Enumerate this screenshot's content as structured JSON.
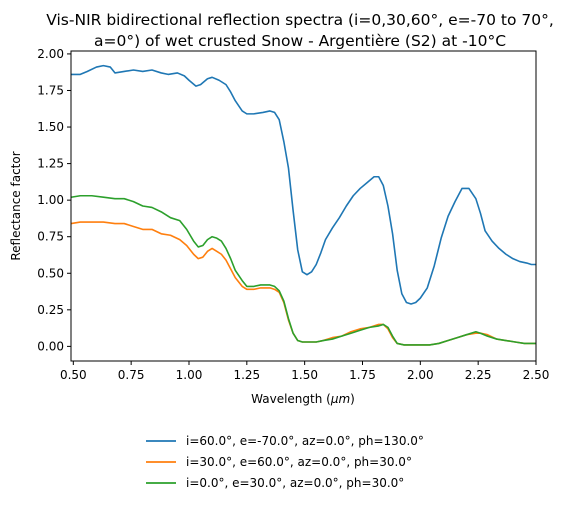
{
  "chart_data": {
    "type": "line",
    "title_line1": "Vis-NIR bidirectional reflection spectra (i=0,30,60°, e=-70 to 70°,",
    "title_line2": "a=0°) of wet crusted Snow - Argentière (S2) at -10°C",
    "xlabel": "Wavelength ($\\mu m$)",
    "ylabel": "Reflectance factor",
    "xlim": [
      0.49,
      2.5
    ],
    "ylim": [
      -0.1,
      2.02
    ],
    "xticks": [
      0.5,
      0.75,
      1.0,
      1.25,
      1.5,
      1.75,
      2.0,
      2.25,
      2.5
    ],
    "xtick_labels": [
      "0.50",
      "0.75",
      "1.00",
      "1.25",
      "1.50",
      "1.75",
      "2.00",
      "2.25",
      "2.50"
    ],
    "yticks": [
      0.0,
      0.25,
      0.5,
      0.75,
      1.0,
      1.25,
      1.5,
      1.75,
      2.0
    ],
    "ytick_labels": [
      "0.00",
      "0.25",
      "0.50",
      "0.75",
      "1.00",
      "1.25",
      "1.50",
      "1.75",
      "2.00"
    ],
    "grid": false,
    "legend_position": "below-plot",
    "series": [
      {
        "name": "i=60.0°, e=-70.0°, az=0.0°, ph=130.0°",
        "color": "#1f77b4",
        "x": [
          0.49,
          0.53,
          0.56,
          0.6,
          0.63,
          0.66,
          0.68,
          0.72,
          0.76,
          0.8,
          0.84,
          0.88,
          0.91,
          0.95,
          0.98,
          1.0,
          1.03,
          1.05,
          1.08,
          1.1,
          1.13,
          1.16,
          1.18,
          1.2,
          1.23,
          1.25,
          1.28,
          1.32,
          1.35,
          1.37,
          1.39,
          1.41,
          1.43,
          1.45,
          1.47,
          1.49,
          1.51,
          1.53,
          1.55,
          1.57,
          1.59,
          1.62,
          1.65,
          1.68,
          1.71,
          1.74,
          1.77,
          1.8,
          1.82,
          1.84,
          1.86,
          1.88,
          1.9,
          1.92,
          1.94,
          1.96,
          1.98,
          2.0,
          2.03,
          2.06,
          2.09,
          2.12,
          2.15,
          2.18,
          2.21,
          2.24,
          2.26,
          2.28,
          2.31,
          2.34,
          2.37,
          2.4,
          2.43,
          2.46,
          2.48,
          2.5
        ],
        "values": [
          1.86,
          1.86,
          1.88,
          1.91,
          1.92,
          1.91,
          1.87,
          1.88,
          1.89,
          1.88,
          1.89,
          1.87,
          1.86,
          1.87,
          1.85,
          1.82,
          1.78,
          1.79,
          1.83,
          1.84,
          1.82,
          1.79,
          1.74,
          1.68,
          1.61,
          1.59,
          1.59,
          1.6,
          1.61,
          1.6,
          1.55,
          1.4,
          1.22,
          0.93,
          0.66,
          0.51,
          0.49,
          0.51,
          0.56,
          0.64,
          0.73,
          0.81,
          0.88,
          0.96,
          1.03,
          1.08,
          1.12,
          1.16,
          1.16,
          1.1,
          0.96,
          0.77,
          0.52,
          0.36,
          0.3,
          0.29,
          0.3,
          0.33,
          0.4,
          0.55,
          0.74,
          0.89,
          0.99,
          1.08,
          1.08,
          1.01,
          0.91,
          0.79,
          0.72,
          0.67,
          0.63,
          0.6,
          0.58,
          0.57,
          0.56,
          0.56
        ]
      },
      {
        "name": "i=30.0°, e=60.0°, az=0.0°, ph=30.0°",
        "color": "#ff7f0e",
        "x": [
          0.49,
          0.53,
          0.58,
          0.63,
          0.68,
          0.72,
          0.76,
          0.8,
          0.84,
          0.88,
          0.92,
          0.96,
          0.99,
          1.02,
          1.04,
          1.06,
          1.08,
          1.1,
          1.12,
          1.14,
          1.16,
          1.18,
          1.2,
          1.23,
          1.25,
          1.28,
          1.31,
          1.35,
          1.37,
          1.39,
          1.41,
          1.43,
          1.45,
          1.47,
          1.49,
          1.52,
          1.55,
          1.58,
          1.62,
          1.66,
          1.7,
          1.74,
          1.78,
          1.82,
          1.84,
          1.86,
          1.88,
          1.9,
          1.93,
          1.96,
          2.0,
          2.04,
          2.08,
          2.12,
          2.16,
          2.2,
          2.24,
          2.26,
          2.29,
          2.33,
          2.37,
          2.41,
          2.45,
          2.5
        ],
        "values": [
          0.84,
          0.85,
          0.85,
          0.85,
          0.84,
          0.84,
          0.82,
          0.8,
          0.8,
          0.77,
          0.76,
          0.73,
          0.69,
          0.63,
          0.6,
          0.61,
          0.65,
          0.67,
          0.65,
          0.63,
          0.59,
          0.53,
          0.47,
          0.41,
          0.39,
          0.39,
          0.4,
          0.4,
          0.39,
          0.37,
          0.3,
          0.18,
          0.09,
          0.04,
          0.03,
          0.03,
          0.03,
          0.04,
          0.06,
          0.07,
          0.1,
          0.12,
          0.13,
          0.15,
          0.15,
          0.12,
          0.06,
          0.02,
          0.01,
          0.01,
          0.01,
          0.01,
          0.02,
          0.04,
          0.06,
          0.08,
          0.09,
          0.09,
          0.08,
          0.05,
          0.04,
          0.03,
          0.02,
          0.02
        ]
      },
      {
        "name": "i=0.0°, e=30.0°, az=0.0°, ph=30.0°",
        "color": "#2ca02c",
        "x": [
          0.49,
          0.53,
          0.58,
          0.63,
          0.68,
          0.72,
          0.76,
          0.8,
          0.84,
          0.88,
          0.92,
          0.96,
          0.99,
          1.02,
          1.04,
          1.06,
          1.08,
          1.1,
          1.12,
          1.14,
          1.16,
          1.18,
          1.2,
          1.23,
          1.25,
          1.28,
          1.31,
          1.35,
          1.37,
          1.39,
          1.41,
          1.43,
          1.45,
          1.47,
          1.49,
          1.52,
          1.55,
          1.58,
          1.62,
          1.66,
          1.7,
          1.74,
          1.78,
          1.82,
          1.84,
          1.86,
          1.88,
          1.9,
          1.93,
          1.96,
          2.0,
          2.04,
          2.08,
          2.12,
          2.16,
          2.2,
          2.24,
          2.26,
          2.29,
          2.33,
          2.37,
          2.41,
          2.45,
          2.5
        ],
        "values": [
          1.02,
          1.03,
          1.03,
          1.02,
          1.01,
          1.01,
          0.99,
          0.96,
          0.95,
          0.92,
          0.88,
          0.86,
          0.8,
          0.72,
          0.68,
          0.69,
          0.73,
          0.75,
          0.74,
          0.72,
          0.67,
          0.6,
          0.52,
          0.45,
          0.41,
          0.41,
          0.42,
          0.42,
          0.41,
          0.38,
          0.31,
          0.19,
          0.09,
          0.04,
          0.03,
          0.03,
          0.03,
          0.04,
          0.05,
          0.07,
          0.09,
          0.11,
          0.13,
          0.14,
          0.15,
          0.13,
          0.07,
          0.02,
          0.01,
          0.01,
          0.01,
          0.01,
          0.02,
          0.04,
          0.06,
          0.08,
          0.1,
          0.09,
          0.07,
          0.05,
          0.04,
          0.03,
          0.02,
          0.02
        ]
      }
    ]
  }
}
